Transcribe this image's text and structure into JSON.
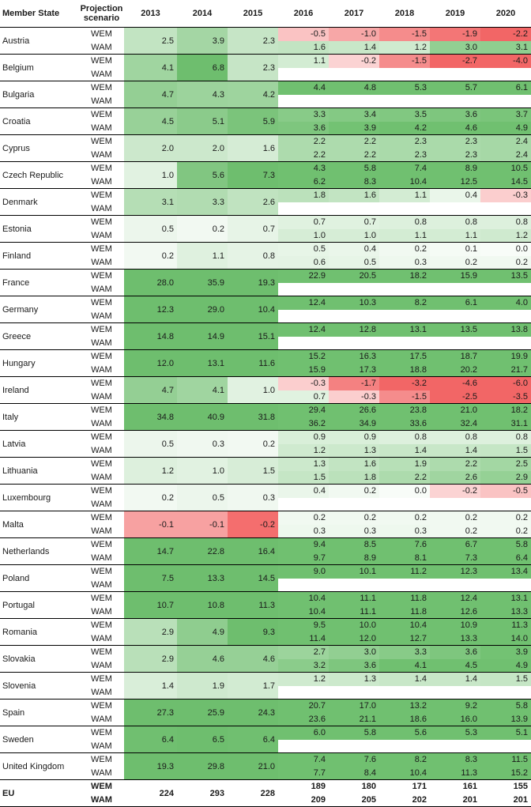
{
  "headers": {
    "member_state": "Member State",
    "projection_scenario": "Projection scenario",
    "years": [
      "2013",
      "2014",
      "2015",
      "2016",
      "2017",
      "2018",
      "2019",
      "2020"
    ]
  },
  "scenarios": [
    "WEM",
    "WAM"
  ],
  "rows": [
    {
      "country": "Austria",
      "hist": [
        "2.5",
        "3.9",
        "2.3"
      ],
      "wem": [
        "-0.5",
        "-1.0",
        "-1.5",
        "-1.9",
        "-2.2"
      ],
      "wam": [
        "1.6",
        "1.4",
        "1.2",
        "3.0",
        "3.1"
      ]
    },
    {
      "country": "Belgium",
      "hist": [
        "4.1",
        "6.8",
        "2.3"
      ],
      "wem": [
        "1.1",
        "-0.2",
        "-1.5",
        "-2.7",
        "-4.0"
      ],
      "wam": null
    },
    {
      "country": "Bulgaria",
      "hist": [
        "4.7",
        "4.3",
        "4.2"
      ],
      "wem": [
        "4.4",
        "4.8",
        "5.3",
        "5.7",
        "6.1"
      ],
      "wam": null
    },
    {
      "country": "Croatia",
      "hist": [
        "4.5",
        "5.1",
        "5.9"
      ],
      "wem": [
        "3.3",
        "3.4",
        "3.5",
        "3.6",
        "3.7"
      ],
      "wam": [
        "3.6",
        "3.9",
        "4.2",
        "4.6",
        "4.9"
      ]
    },
    {
      "country": "Cyprus",
      "hist": [
        "2.0",
        "2.0",
        "1.6"
      ],
      "wem": [
        "2.2",
        "2.2",
        "2.3",
        "2.3",
        "2.4"
      ],
      "wam": [
        "2.2",
        "2.2",
        "2.3",
        "2.3",
        "2.4"
      ]
    },
    {
      "country": "Czech Republic",
      "hist": [
        "1.0",
        "5.6",
        "7.3"
      ],
      "wem": [
        "4.3",
        "5.8",
        "7.4",
        "8.9",
        "10.5"
      ],
      "wam": [
        "6.2",
        "8.3",
        "10.4",
        "12.5",
        "14.5"
      ]
    },
    {
      "country": "Denmark",
      "hist": [
        "3.1",
        "3.3",
        "2.6"
      ],
      "wem": [
        "1.8",
        "1.6",
        "1.1",
        "0.4",
        "-0.3"
      ],
      "wam": null
    },
    {
      "country": "Estonia",
      "hist": [
        "0.5",
        "0.2",
        "0.7"
      ],
      "wem": [
        "0.7",
        "0.7",
        "0.8",
        "0.8",
        "0.8"
      ],
      "wam": [
        "1.0",
        "1.0",
        "1.1",
        "1.1",
        "1.2"
      ]
    },
    {
      "country": "Finland",
      "hist": [
        "0.2",
        "1.1",
        "0.8"
      ],
      "wem": [
        "0.5",
        "0.4",
        "0.2",
        "0.1",
        "0.0"
      ],
      "wam": [
        "0.6",
        "0.5",
        "0.3",
        "0.2",
        "0.2"
      ]
    },
    {
      "country": "France",
      "hist": [
        "28.0",
        "35.9",
        "19.3"
      ],
      "wem": [
        "22.9",
        "20.5",
        "18.2",
        "15.9",
        "13.5"
      ],
      "wam": null
    },
    {
      "country": "Germany",
      "hist": [
        "12.3",
        "29.0",
        "10.4"
      ],
      "wem": [
        "12.4",
        "10.3",
        "8.2",
        "6.1",
        "4.0"
      ],
      "wam": null
    },
    {
      "country": "Greece",
      "hist": [
        "14.8",
        "14.9",
        "15.1"
      ],
      "wem": [
        "12.4",
        "12.8",
        "13.1",
        "13.5",
        "13.8"
      ],
      "wam": null
    },
    {
      "country": "Hungary",
      "hist": [
        "12.0",
        "13.1",
        "11.6"
      ],
      "wem": [
        "15.2",
        "16.3",
        "17.5",
        "18.7",
        "19.9"
      ],
      "wam": [
        "15.9",
        "17.3",
        "18.8",
        "20.2",
        "21.7"
      ]
    },
    {
      "country": "Ireland",
      "hist": [
        "4.7",
        "4.1",
        "1.0"
      ],
      "wem": [
        "-0.3",
        "-1.7",
        "-3.2",
        "-4.6",
        "-6.0"
      ],
      "wam": [
        "0.7",
        "-0.3",
        "-1.5",
        "-2.5",
        "-3.5"
      ]
    },
    {
      "country": "Italy",
      "hist": [
        "34.8",
        "40.9",
        "31.8"
      ],
      "wem": [
        "29.4",
        "26.6",
        "23.8",
        "21.0",
        "18.2"
      ],
      "wam": [
        "36.2",
        "34.9",
        "33.6",
        "32.4",
        "31.1"
      ]
    },
    {
      "country": "Latvia",
      "hist": [
        "0.5",
        "0.3",
        "0.2"
      ],
      "wem": [
        "0.9",
        "0.9",
        "0.8",
        "0.8",
        "0.8"
      ],
      "wam": [
        "1.2",
        "1.3",
        "1.4",
        "1.4",
        "1.5"
      ]
    },
    {
      "country": "Lithuania",
      "hist": [
        "1.2",
        "1.0",
        "1.5"
      ],
      "wem": [
        "1.3",
        "1.6",
        "1.9",
        "2.2",
        "2.5"
      ],
      "wam": [
        "1.5",
        "1.8",
        "2.2",
        "2.6",
        "2.9"
      ]
    },
    {
      "country": "Luxembourg",
      "hist": [
        "0.2",
        "0.5",
        "0.3"
      ],
      "wem": [
        "0.4",
        "0.2",
        "0.0",
        "-0.2",
        "-0.5"
      ],
      "wam": null
    },
    {
      "country": "Malta",
      "hist": [
        "-0.1",
        "-0.1",
        "-0.2"
      ],
      "wem": [
        "0.2",
        "0.2",
        "0.2",
        "0.2",
        "0.2"
      ],
      "wam": [
        "0.3",
        "0.3",
        "0.3",
        "0.2",
        "0.2"
      ]
    },
    {
      "country": "Netherlands",
      "hist": [
        "14.7",
        "22.8",
        "16.4"
      ],
      "wem": [
        "9.4",
        "8.5",
        "7.6",
        "6.7",
        "5.8"
      ],
      "wam": [
        "9.7",
        "8.9",
        "8.1",
        "7.3",
        "6.4"
      ]
    },
    {
      "country": "Poland",
      "hist": [
        "7.5",
        "13.3",
        "14.5"
      ],
      "wem": [
        "9.0",
        "10.1",
        "11.2",
        "12.3",
        "13.4"
      ],
      "wam": null
    },
    {
      "country": "Portugal",
      "hist": [
        "10.7",
        "10.8",
        "11.3"
      ],
      "wem": [
        "10.4",
        "11.1",
        "11.8",
        "12.4",
        "13.1"
      ],
      "wam": [
        "10.4",
        "11.1",
        "11.8",
        "12.6",
        "13.3"
      ]
    },
    {
      "country": "Romania",
      "hist": [
        "2.9",
        "4.9",
        "9.3"
      ],
      "wem": [
        "9.5",
        "10.0",
        "10.4",
        "10.9",
        "11.3"
      ],
      "wam": [
        "11.4",
        "12.0",
        "12.7",
        "13.3",
        "14.0"
      ]
    },
    {
      "country": "Slovakia",
      "hist": [
        "2.9",
        "4.6",
        "4.6"
      ],
      "wem": [
        "2.7",
        "3.0",
        "3.3",
        "3.6",
        "3.9"
      ],
      "wam": [
        "3.2",
        "3.6",
        "4.1",
        "4.5",
        "4.9"
      ]
    },
    {
      "country": "Slovenia",
      "hist": [
        "1.4",
        "1.9",
        "1.7"
      ],
      "wem": [
        "1.2",
        "1.3",
        "1.4",
        "1.4",
        "1.5"
      ],
      "wam": null
    },
    {
      "country": "Spain",
      "hist": [
        "27.3",
        "25.9",
        "24.3"
      ],
      "wem": [
        "20.7",
        "17.0",
        "13.2",
        "9.2",
        "5.8"
      ],
      "wam": [
        "23.6",
        "21.1",
        "18.6",
        "16.0",
        "13.9"
      ]
    },
    {
      "country": "Sweden",
      "hist": [
        "6.4",
        "6.5",
        "6.4"
      ],
      "wem": [
        "6.0",
        "5.8",
        "5.6",
        "5.3",
        "5.1"
      ],
      "wam": null
    },
    {
      "country": "United Kingdom",
      "hist": [
        "19.3",
        "29.8",
        "21.0"
      ],
      "wem": [
        "7.4",
        "7.6",
        "8.2",
        "8.3",
        "11.5"
      ],
      "wam": [
        "7.7",
        "8.4",
        "10.4",
        "11.3",
        "15.2"
      ]
    },
    {
      "country": "EU",
      "hist": [
        "224",
        "293",
        "228"
      ],
      "wem": [
        "189",
        "180",
        "171",
        "161",
        "155"
      ],
      "wam": [
        "209",
        "205",
        "202",
        "201",
        "201"
      ],
      "bold": true
    }
  ]
}
